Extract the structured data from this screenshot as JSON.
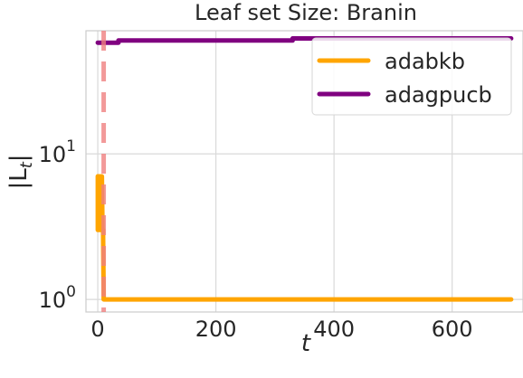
{
  "chart_data": {
    "type": "line",
    "title": "Leaf set Size: Branin",
    "xlabel": "t",
    "ylabel_main": "|L",
    "ylabel_sub": "t",
    "ylabel_tail": "|",
    "xlim": [
      -20,
      720
    ],
    "ylim": [
      0.82,
      70
    ],
    "yscale": "log",
    "grid": true,
    "x_ticks": [
      0,
      200,
      400,
      600
    ],
    "x_tick_labels": [
      "0",
      "200",
      "400",
      "600"
    ],
    "y_ticks": [
      1,
      10
    ],
    "y_tick_labels": [
      {
        "base": "10",
        "exp": "0"
      },
      {
        "base": "10",
        "exp": "1"
      }
    ],
    "legend_position": "top-right",
    "series": [
      {
        "name": "adabkb",
        "color": "#ffa500",
        "x": [
          0,
          0,
          1,
          2,
          3,
          4,
          5,
          6,
          7,
          8,
          9,
          10,
          700
        ],
        "y": [
          3,
          7,
          7,
          3,
          7,
          3,
          7,
          3,
          7,
          3,
          3,
          1,
          1
        ]
      },
      {
        "name": "adagpucb",
        "color": "#800080",
        "x": [
          0,
          35,
          35,
          330,
          330,
          700
        ],
        "y": [
          58,
          58,
          60,
          60,
          62,
          62
        ]
      }
    ],
    "vline": {
      "x": 10,
      "color": "#f08080",
      "style": "dashed"
    }
  }
}
